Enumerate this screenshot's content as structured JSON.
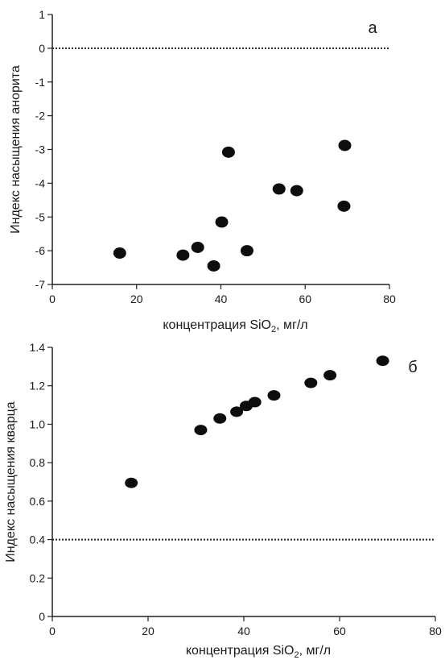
{
  "chart_data": [
    {
      "type": "scatter",
      "panel_label": "а",
      "xlabel": "концентрация SiO",
      "xlabel_sub": "2",
      "xlabel_units": ", мг/л",
      "ylabel": "Индекс насыщения анорита",
      "xlim": [
        0,
        80
      ],
      "ylim": [
        -7,
        1
      ],
      "xticks": [
        0,
        20,
        40,
        60,
        80
      ],
      "yticks": [
        1,
        0,
        -1,
        -2,
        -3,
        -4,
        -5,
        -6,
        -7
      ],
      "reference_line": 0,
      "points": [
        {
          "x": 16,
          "y": -6.07
        },
        {
          "x": 31,
          "y": -6.13
        },
        {
          "x": 34.5,
          "y": -5.9
        },
        {
          "x": 38.3,
          "y": -6.45
        },
        {
          "x": 40.2,
          "y": -5.15
        },
        {
          "x": 41.8,
          "y": -3.08
        },
        {
          "x": 46.2,
          "y": -6.0
        },
        {
          "x": 53.8,
          "y": -4.17
        },
        {
          "x": 58.0,
          "y": -4.22
        },
        {
          "x": 69.2,
          "y": -4.68
        },
        {
          "x": 69.4,
          "y": -2.88
        }
      ]
    },
    {
      "type": "scatter",
      "panel_label": "б",
      "xlabel": "концентрация SiO",
      "xlabel_sub": "2",
      "xlabel_units": ", мг/л",
      "ylabel": "Индекс насыщения кварца",
      "xlim": [
        0,
        80
      ],
      "ylim": [
        0,
        1.4
      ],
      "xticks": [
        0,
        20,
        40,
        60,
        80
      ],
      "yticks": [
        0,
        0.2,
        0.4,
        0.6,
        0.8,
        1.0,
        1.2,
        1.4
      ],
      "ytick_labels": [
        "0",
        "0.2",
        "0.4",
        "0.6",
        "0.8",
        "1.0",
        "1.2",
        "1.4"
      ],
      "reference_line": 0.4,
      "points": [
        {
          "x": 16.5,
          "y": 0.695
        },
        {
          "x": 31.0,
          "y": 0.97
        },
        {
          "x": 35.0,
          "y": 1.03
        },
        {
          "x": 38.5,
          "y": 1.065
        },
        {
          "x": 40.5,
          "y": 1.095
        },
        {
          "x": 42.3,
          "y": 1.115
        },
        {
          "x": 46.3,
          "y": 1.15
        },
        {
          "x": 54.0,
          "y": 1.215
        },
        {
          "x": 58.0,
          "y": 1.255
        },
        {
          "x": 69.0,
          "y": 1.33
        }
      ]
    }
  ]
}
